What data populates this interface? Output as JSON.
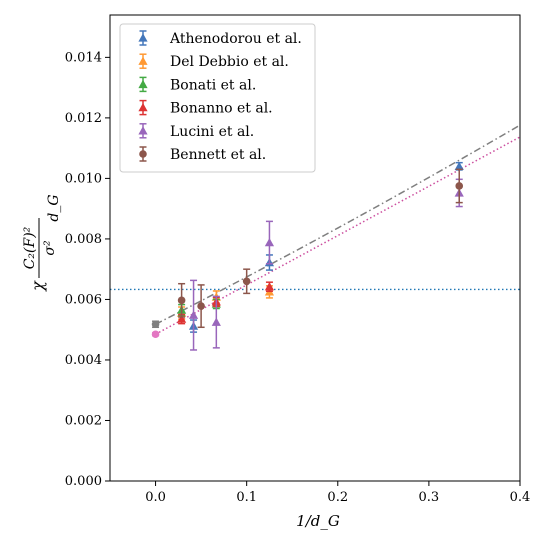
{
  "chart_data": {
    "type": "scatter",
    "xlabel": "1/d_G",
    "ylabel": {
      "prefix": "χ",
      "numerator": "C₂(F)²",
      "denominator": "σ²",
      "suffix": "d_G"
    },
    "xlim": [
      -0.05,
      0.4
    ],
    "ylim": [
      0.0,
      0.0154
    ],
    "x_ticks": [
      {
        "value": 0.0,
        "label": "0.0"
      },
      {
        "value": 0.1,
        "label": "0.1"
      },
      {
        "value": 0.2,
        "label": "0.2"
      },
      {
        "value": 0.3,
        "label": "0.3"
      },
      {
        "value": 0.4,
        "label": "0.4"
      }
    ],
    "y_ticks": [
      {
        "value": 0.0,
        "label": "0.000"
      },
      {
        "value": 0.002,
        "label": "0.002"
      },
      {
        "value": 0.004,
        "label": "0.004"
      },
      {
        "value": 0.006,
        "label": "0.006"
      },
      {
        "value": 0.008,
        "label": "0.008"
      },
      {
        "value": 0.01,
        "label": "0.010"
      },
      {
        "value": 0.012,
        "label": "0.012"
      },
      {
        "value": 0.014,
        "label": "0.014"
      }
    ],
    "legend_position": "top-left",
    "series": [
      {
        "name": "Athenodorou et al.",
        "color": "#4477bb",
        "marker": "triangle",
        "points": [
          {
            "x": 0.0417,
            "y": 0.00512,
            "err": 0.0002
          },
          {
            "x": 0.125,
            "y": 0.00722,
            "err": 0.00025
          },
          {
            "x": 0.3333,
            "y": 0.0104,
            "err": 0.00012
          }
        ]
      },
      {
        "name": "Del Debbio et al.",
        "color": "#ff9933",
        "marker": "triangle",
        "points": [
          {
            "x": 0.0286,
            "y": 0.00555,
            "err": 0.0002
          },
          {
            "x": 0.0667,
            "y": 0.00608,
            "err": 0.0002
          },
          {
            "x": 0.125,
            "y": 0.00625,
            "err": 0.0002
          }
        ]
      },
      {
        "name": "Bonati et al.",
        "color": "#44aa44",
        "marker": "triangle",
        "points": [
          {
            "x": 0.0286,
            "y": 0.00565,
            "err": 0.00018
          },
          {
            "x": 0.0667,
            "y": 0.00585,
            "err": 0.00015
          }
        ]
      },
      {
        "name": "Bonanno et al.",
        "color": "#dd3333",
        "marker": "triangle",
        "points": [
          {
            "x": 0.0286,
            "y": 0.00535,
            "err": 0.00015
          },
          {
            "x": 0.0667,
            "y": 0.00592,
            "err": 0.00015
          },
          {
            "x": 0.125,
            "y": 0.00642,
            "err": 0.00015
          }
        ]
      },
      {
        "name": "Lucini et al.",
        "color": "#9966bb",
        "marker": "triangle",
        "points": [
          {
            "x": 0.0417,
            "y": 0.00548,
            "err": 0.00115
          },
          {
            "x": 0.0667,
            "y": 0.00525,
            "err": 0.00085
          },
          {
            "x": 0.125,
            "y": 0.00788,
            "err": 0.0007
          },
          {
            "x": 0.3333,
            "y": 0.00952,
            "err": 0.00045
          }
        ]
      },
      {
        "name": "Bennett et al.",
        "color": "#8c564b",
        "marker": "circle",
        "points": [
          {
            "x": 0.0286,
            "y": 0.00597,
            "err": 0.00055
          },
          {
            "x": 0.05,
            "y": 0.00578,
            "err": 0.0007
          },
          {
            "x": 0.1,
            "y": 0.0066,
            "err": 0.0004
          },
          {
            "x": 0.3333,
            "y": 0.00975,
            "err": 0.00055
          }
        ]
      }
    ],
    "extrapolations": [
      {
        "x": 0.0,
        "y": 0.00518,
        "err": 0.0001,
        "color": "#7f7f7f"
      },
      {
        "x": 0.0,
        "y": 0.00485,
        "err": 5e-05,
        "color": "#e377c2"
      }
    ],
    "fit_lines": [
      {
        "style": "dashdot",
        "color": "#7f7f7f",
        "form": "quadratic",
        "coeffs": [
          0.00518,
          0.01535,
          0.00275
        ],
        "x_range": [
          0.0,
          0.4
        ]
      },
      {
        "style": "dotted",
        "color": "#cc4f9f",
        "form": "linear",
        "coeffs": [
          0.00485,
          0.0163
        ],
        "x_range": [
          0.0,
          0.4
        ]
      }
    ],
    "reference_line": {
      "style": "dotted",
      "color": "#1f77b4",
      "y": 0.00633
    }
  }
}
